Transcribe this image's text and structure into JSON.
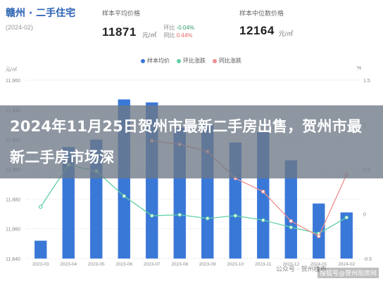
{
  "header": {
    "title": "赣州 · 二手住宅",
    "date": "(2024-02)",
    "avg_price": {
      "label": "样本平均价格",
      "value": "11871",
      "unit": "元/㎡",
      "mom_label": "环比",
      "mom_value": "-0.04%",
      "yoy_label": "同比",
      "yoy_value": "0.44%"
    },
    "median_price": {
      "label": "样本中位数价格",
      "value": "12164",
      "unit": "元/㎡"
    }
  },
  "legend": [
    {
      "label": "样本均价",
      "color": "#3a78d8"
    },
    {
      "label": "环比涨跌",
      "color": "#5fd0a4"
    },
    {
      "label": "同比涨跌",
      "color": "#ef8e8e"
    }
  ],
  "axis_units": {
    "left": "元/㎡",
    "right": "%"
  },
  "banner": {
    "text": "2024年11月25日贺州市最新二手房出售，贺州市最新二手房市场深"
  },
  "watermark": {
    "left": "公众号 · 贺州楼市",
    "right": "搜狐号@贺州阳房网"
  },
  "chart_data": {
    "type": "bar",
    "categories": [
      "2023-03",
      "2023-04",
      "2023-05",
      "2023-06",
      "2023-07",
      "2023-08",
      "2023-09",
      "2023-10",
      "2023-11",
      "2023-12",
      "2024-01",
      "2024-02"
    ],
    "left_ticks": [
      "11,840",
      "11,860",
      "11,880",
      "11,900",
      "11,920",
      "11,940",
      "11,960"
    ],
    "right_ticks": [
      "-0.5",
      "0",
      "0.5",
      "1",
      "1.5"
    ],
    "ylim_left": [
      11840,
      11960
    ],
    "ylim_right": [
      -0.5,
      1.5
    ],
    "series": [
      {
        "name": "样本均价",
        "kind": "bar",
        "axis": "left",
        "color": "#3a78d8",
        "values": [
          11852,
          11915,
          11920,
          11947,
          11945,
          11928,
          11930,
          11918,
          11925,
          11906,
          11877,
          11871
        ]
      },
      {
        "name": "环比涨跌",
        "kind": "line",
        "axis": "right",
        "color": "#5fd0a4",
        "values": [
          0.08,
          0.55,
          0.48,
          0.2,
          -0.02,
          -0.01,
          -0.05,
          -0.02,
          -0.07,
          -0.15,
          -0.22,
          -0.04
        ]
      },
      {
        "name": "同比涨跌",
        "kind": "line",
        "axis": "right",
        "color": "#ef8e8e",
        "values": [
          null,
          null,
          null,
          null,
          0.82,
          0.78,
          0.7,
          0.4,
          0.25,
          -0.08,
          -0.25,
          0.44
        ]
      }
    ]
  }
}
